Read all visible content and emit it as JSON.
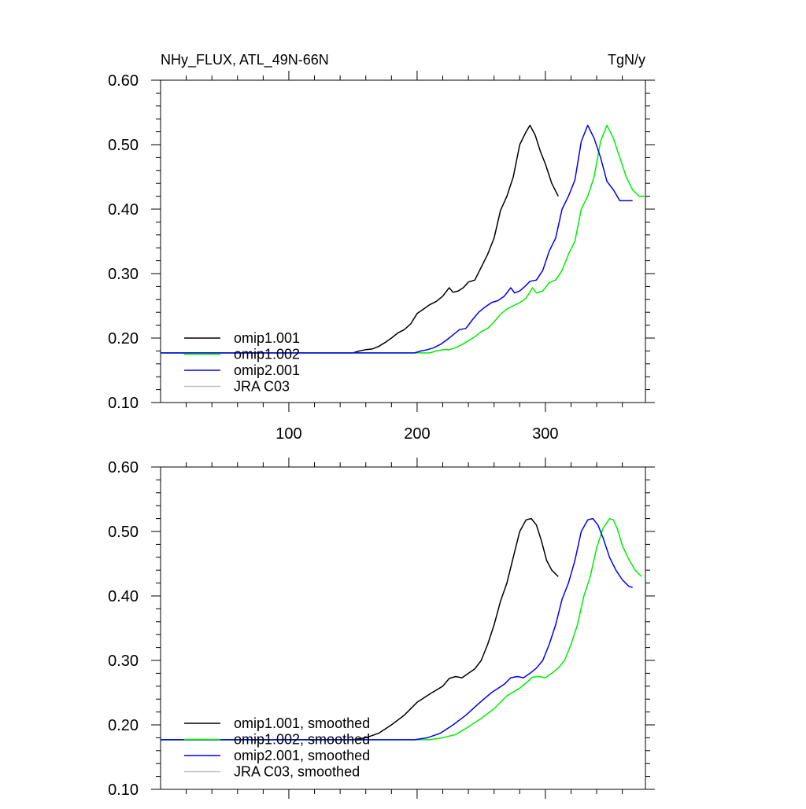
{
  "chart_data": [
    {
      "type": "line",
      "title": "NHy_FLUX, ATL_49N-66N",
      "units": "TgN/y",
      "xlim": [
        0,
        378
      ],
      "ylim": [
        0.1,
        0.6
      ],
      "xticks": [
        100,
        200,
        300
      ],
      "xtick_labels": [
        "100",
        "200",
        "300"
      ],
      "yticks": [
        0.1,
        0.2,
        0.3,
        0.4,
        0.5,
        0.6
      ],
      "ytick_labels": [
        "0.10",
        "0.20",
        "0.30",
        "0.40",
        "0.50",
        "0.60"
      ],
      "grid": false,
      "legend_position": "bottom-left",
      "series": [
        {
          "name": "omip1.001",
          "color": "#000000",
          "x": [
            0,
            150,
            155,
            160,
            165,
            170,
            175,
            180,
            185,
            190,
            195,
            200,
            205,
            210,
            215,
            220,
            225,
            228,
            232,
            236,
            240,
            245,
            250,
            255,
            260,
            265,
            270,
            275,
            280,
            285,
            288,
            292,
            296,
            300,
            305,
            310
          ],
          "y": [
            0.177,
            0.177,
            0.18,
            0.182,
            0.183,
            0.187,
            0.193,
            0.2,
            0.208,
            0.213,
            0.222,
            0.238,
            0.245,
            0.252,
            0.257,
            0.265,
            0.278,
            0.271,
            0.273,
            0.278,
            0.287,
            0.29,
            0.31,
            0.33,
            0.355,
            0.398,
            0.42,
            0.45,
            0.5,
            0.52,
            0.53,
            0.515,
            0.49,
            0.47,
            0.44,
            0.42
          ]
        },
        {
          "name": "omip1.002",
          "color": "#00ee00",
          "x": [
            0,
            210,
            215,
            220,
            225,
            230,
            235,
            240,
            245,
            250,
            255,
            260,
            265,
            270,
            275,
            280,
            285,
            290,
            293,
            298,
            303,
            308,
            313,
            318,
            323,
            328,
            333,
            338,
            343,
            348,
            353,
            358,
            363,
            368,
            373,
            378
          ],
          "y": [
            0.177,
            0.177,
            0.18,
            0.182,
            0.182,
            0.185,
            0.19,
            0.196,
            0.202,
            0.21,
            0.215,
            0.225,
            0.237,
            0.245,
            0.25,
            0.255,
            0.262,
            0.278,
            0.27,
            0.273,
            0.286,
            0.29,
            0.305,
            0.33,
            0.35,
            0.4,
            0.42,
            0.45,
            0.505,
            0.53,
            0.51,
            0.48,
            0.45,
            0.43,
            0.42,
            0.42
          ]
        },
        {
          "name": "omip2.001",
          "color": "#0000ee",
          "x": [
            0,
            198,
            203,
            208,
            213,
            218,
            223,
            228,
            233,
            238,
            243,
            248,
            253,
            258,
            263,
            268,
            273,
            276,
            280,
            284,
            288,
            293,
            298,
            303,
            308,
            313,
            318,
            323,
            328,
            333,
            338,
            343,
            348,
            353,
            358,
            363,
            368
          ],
          "y": [
            0.177,
            0.177,
            0.18,
            0.182,
            0.185,
            0.19,
            0.197,
            0.205,
            0.213,
            0.215,
            0.228,
            0.24,
            0.248,
            0.255,
            0.258,
            0.265,
            0.278,
            0.27,
            0.273,
            0.28,
            0.288,
            0.29,
            0.305,
            0.335,
            0.355,
            0.4,
            0.42,
            0.445,
            0.505,
            0.53,
            0.51,
            0.48,
            0.443,
            0.43,
            0.413,
            0.413,
            0.413
          ]
        },
        {
          "name": "JRA C03",
          "color": "#c0c0c0",
          "x": [],
          "y": []
        }
      ]
    },
    {
      "type": "line",
      "xlim": [
        0,
        378
      ],
      "ylim": [
        0.1,
        0.6
      ],
      "xticks": [
        100,
        200,
        300
      ],
      "yticks": [
        0.1,
        0.2,
        0.3,
        0.4,
        0.5,
        0.6
      ],
      "ytick_labels": [
        "0.10",
        "0.20",
        "0.30",
        "0.40",
        "0.50",
        "0.60"
      ],
      "grid": false,
      "legend_position": "bottom-left",
      "series": [
        {
          "name": "omip1.001, smoothed",
          "color": "#000000",
          "x": [
            0,
            150,
            160,
            170,
            180,
            190,
            200,
            210,
            220,
            225,
            230,
            235,
            240,
            245,
            250,
            255,
            260,
            265,
            270,
            275,
            280,
            285,
            289,
            293,
            297,
            301,
            305,
            310
          ],
          "y": [
            0.177,
            0.177,
            0.18,
            0.187,
            0.2,
            0.215,
            0.235,
            0.248,
            0.26,
            0.272,
            0.275,
            0.273,
            0.28,
            0.287,
            0.3,
            0.325,
            0.355,
            0.392,
            0.42,
            0.46,
            0.5,
            0.518,
            0.52,
            0.51,
            0.485,
            0.455,
            0.44,
            0.43
          ]
        },
        {
          "name": "omip1.002, smoothed",
          "color": "#00ee00",
          "x": [
            0,
            210,
            220,
            230,
            240,
            250,
            260,
            270,
            280,
            285,
            290,
            295,
            300,
            305,
            310,
            315,
            320,
            325,
            330,
            335,
            340,
            345,
            350,
            353,
            356,
            360,
            365,
            370,
            375
          ],
          "y": [
            0.177,
            0.177,
            0.18,
            0.185,
            0.197,
            0.21,
            0.225,
            0.245,
            0.257,
            0.265,
            0.274,
            0.275,
            0.273,
            0.28,
            0.288,
            0.3,
            0.325,
            0.355,
            0.4,
            0.43,
            0.475,
            0.505,
            0.52,
            0.518,
            0.505,
            0.478,
            0.457,
            0.44,
            0.43
          ]
        },
        {
          "name": "omip2.001, smoothed",
          "color": "#0000ee",
          "x": [
            0,
            198,
            208,
            218,
            228,
            238,
            248,
            258,
            268,
            273,
            278,
            283,
            288,
            293,
            298,
            303,
            308,
            313,
            318,
            323,
            328,
            333,
            337,
            341,
            345,
            350,
            355,
            360,
            365,
            368
          ],
          "y": [
            0.177,
            0.177,
            0.18,
            0.187,
            0.2,
            0.215,
            0.233,
            0.25,
            0.263,
            0.273,
            0.275,
            0.273,
            0.28,
            0.288,
            0.3,
            0.325,
            0.355,
            0.395,
            0.42,
            0.455,
            0.5,
            0.518,
            0.52,
            0.51,
            0.49,
            0.46,
            0.44,
            0.425,
            0.415,
            0.413
          ]
        },
        {
          "name": "JRA C03, smoothed",
          "color": "#c0c0c0",
          "x": [],
          "y": []
        }
      ]
    }
  ]
}
